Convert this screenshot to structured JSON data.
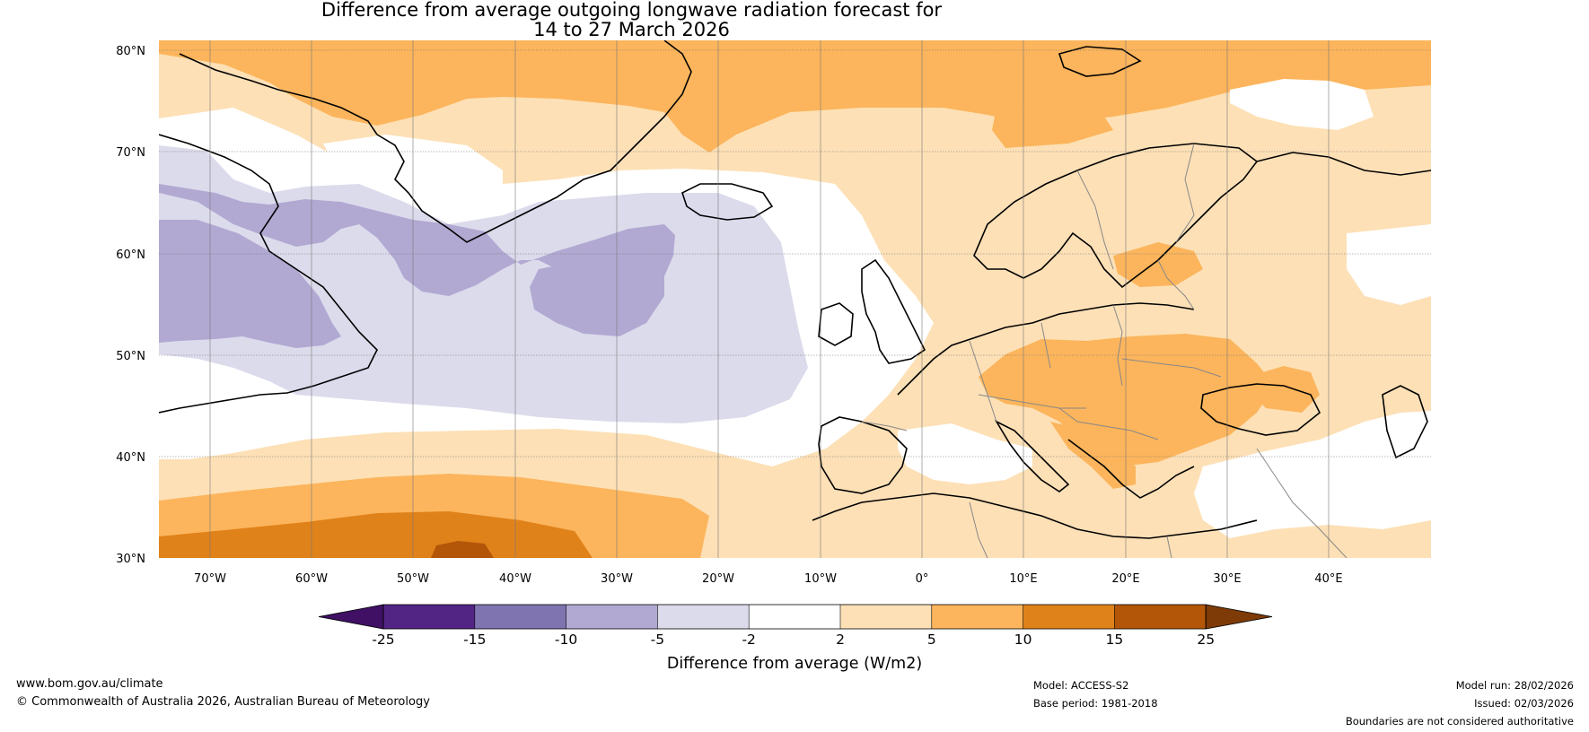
{
  "header": {
    "title_line1": "Difference from average outgoing longwave radiation forecast for",
    "title_line2": "14 to 27 March 2026"
  },
  "map": {
    "lat_labels": [
      "80°N",
      "70°N",
      "60°N",
      "50°N",
      "40°N",
      "30°N"
    ],
    "lon_labels": [
      "70°W",
      "60°W",
      "50°W",
      "40°W",
      "30°W",
      "20°W",
      "10°W",
      "0°",
      "10°E",
      "20°E",
      "30°E",
      "40°E"
    ],
    "lat_range": [
      30,
      81
    ],
    "lon_range": [
      -75,
      50
    ]
  },
  "colorbar": {
    "ticks": [
      "-25",
      "-15",
      "-10",
      "-5",
      "-2",
      "2",
      "5",
      "10",
      "15",
      "25"
    ],
    "colors": [
      "#3f1064",
      "#522585",
      "#8074b0",
      "#b1a9d2",
      "#dcdbec",
      "#ffffff",
      "#fde0b6",
      "#fcb55c",
      "#e0821a",
      "#b35608",
      "#7e3a07"
    ],
    "label": "Difference from average (W/m2)"
  },
  "footer": {
    "website": "www.bom.gov.au/climate",
    "copyright": "© Commonwealth of Australia 2026, Australian Bureau of Meteorology",
    "model": "Model: ACCESS-S2",
    "base_period": "Base period: 1981-2018",
    "model_run": "Model run: 28/02/2026",
    "issued": "Issued: 02/03/2026",
    "disclaimer": "Boundaries are not considered authoritative"
  }
}
